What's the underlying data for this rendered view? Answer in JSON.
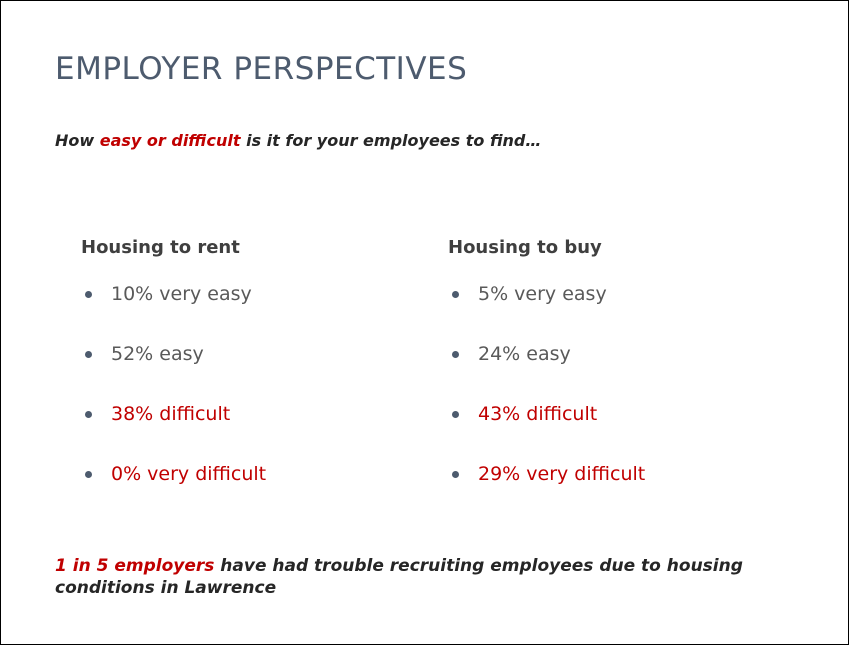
{
  "title": "EMPLOYER PERSPECTIVES",
  "subtitle": [
    "How ",
    "easy or difficult",
    " is it for your employees to find…"
  ],
  "columns": [
    {
      "heading": "Housing to rent",
      "items": [
        "10% very easy",
        "52% easy",
        "38% difficult",
        "0% very difficult"
      ]
    },
    {
      "heading": "Housing to buy",
      "items": [
        "5% very easy",
        "24% easy",
        "43% difficult",
        "29% very difficult"
      ]
    }
  ],
  "footer": [
    "1 in 5 employers",
    " have had trouble recruiting employees due to housing conditions in Lawrence"
  ]
}
